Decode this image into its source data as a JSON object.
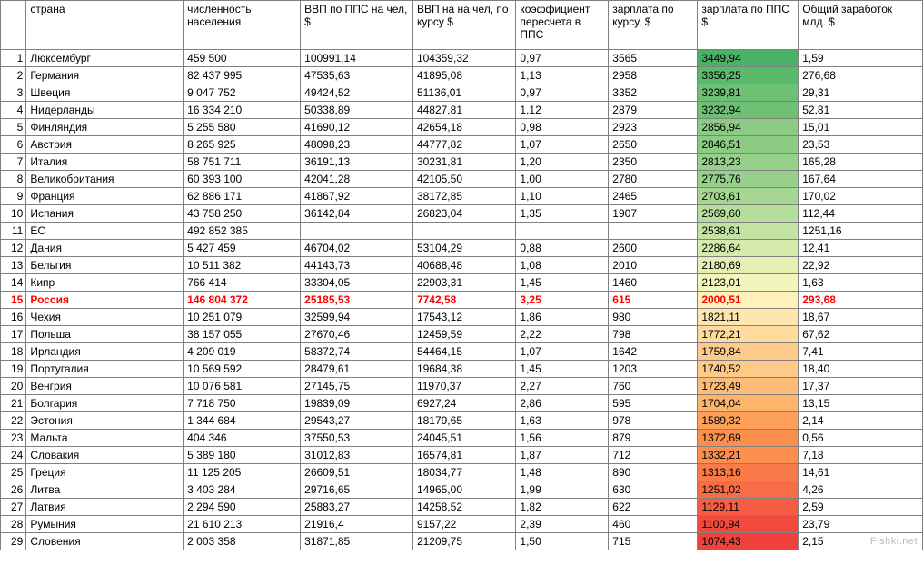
{
  "watermark": "Fishki.net",
  "headers": {
    "idx": "",
    "country": "страна",
    "population": "численность населения",
    "gdp_ppp": "ВВП по ППС  на чел, $",
    "gdp_rate": "ВВП на на чел, по курсу $",
    "coef": "коэффициент пересчета в ППС",
    "salary": "зарплата по курсу, $",
    "salary_ppp": "зарплата по ППС $",
    "total": "Общий заработок млд. $"
  },
  "highlight_row_idx": 15,
  "ppp_colors": [
    "#4bb168",
    "#5bb96c",
    "#6ec075",
    "#6ec075",
    "#8ccb84",
    "#8ccb84",
    "#97d08b",
    "#97d08b",
    "#a6d792",
    "#b6de9b",
    "#c4e3a3",
    "#d6eaac",
    "#e4f0b4",
    "#f2f5bd",
    "#fef1b9",
    "#fee6ae",
    "#fedb9e",
    "#feca89",
    "#feca89",
    "#fdbd79",
    "#fdb56e",
    "#fda05a",
    "#fc8e4e",
    "#fc8e4e",
    "#f97b49",
    "#f76d47",
    "#f55e44",
    "#f24a3f",
    "#f0413d"
  ],
  "rows": [
    {
      "idx": "1",
      "country": "Люксембург",
      "population": "459 500",
      "gdp_ppp": "100991,14",
      "gdp_rate": "104359,32",
      "coef": "0,97",
      "salary": "3565",
      "salary_ppp": "3449,94",
      "total": "1,59"
    },
    {
      "idx": "2",
      "country": "Германия",
      "population": "82 437 995",
      "gdp_ppp": "47535,63",
      "gdp_rate": "41895,08",
      "coef": "1,13",
      "salary": "2958",
      "salary_ppp": "3356,25",
      "total": "276,68"
    },
    {
      "idx": "3",
      "country": "Швеция",
      "population": "9 047 752",
      "gdp_ppp": "49424,52",
      "gdp_rate": "51136,01",
      "coef": "0,97",
      "salary": "3352",
      "salary_ppp": "3239,81",
      "total": "29,31"
    },
    {
      "idx": "4",
      "country": "Нидерланды",
      "population": "16 334 210",
      "gdp_ppp": "50338,89",
      "gdp_rate": "44827,81",
      "coef": "1,12",
      "salary": "2879",
      "salary_ppp": "3232,94",
      "total": "52,81"
    },
    {
      "idx": "5",
      "country": "Финляндия",
      "population": "5 255 580",
      "gdp_ppp": "41690,12",
      "gdp_rate": "42654,18",
      "coef": "0,98",
      "salary": "2923",
      "salary_ppp": "2856,94",
      "total": "15,01"
    },
    {
      "idx": "6",
      "country": "Австрия",
      "population": "8 265 925",
      "gdp_ppp": "48098,23",
      "gdp_rate": "44777,82",
      "coef": "1,07",
      "salary": "2650",
      "salary_ppp": "2846,51",
      "total": "23,53"
    },
    {
      "idx": "7",
      "country": "Италия",
      "population": "58 751 711",
      "gdp_ppp": "36191,13",
      "gdp_rate": "30231,81",
      "coef": "1,20",
      "salary": "2350",
      "salary_ppp": "2813,23",
      "total": "165,28"
    },
    {
      "idx": "8",
      "country": "Великобритания",
      "population": "60 393 100",
      "gdp_ppp": "42041,28",
      "gdp_rate": "42105,50",
      "coef": "1,00",
      "salary": "2780",
      "salary_ppp": "2775,76",
      "total": "167,64"
    },
    {
      "idx": "9",
      "country": "Франция",
      "population": "62 886 171",
      "gdp_ppp": "41867,92",
      "gdp_rate": "38172,85",
      "coef": "1,10",
      "salary": "2465",
      "salary_ppp": "2703,61",
      "total": "170,02"
    },
    {
      "idx": "10",
      "country": "Испания",
      "population": "43 758 250",
      "gdp_ppp": "36142,84",
      "gdp_rate": "26823,04",
      "coef": "1,35",
      "salary": "1907",
      "salary_ppp": "2569,60",
      "total": "112,44"
    },
    {
      "idx": "11",
      "country": " ЕС",
      "population": "492 852 385",
      "gdp_ppp": "",
      "gdp_rate": "",
      "coef": "",
      "salary": "",
      "salary_ppp": "2538,61",
      "total": "1251,16"
    },
    {
      "idx": "12",
      "country": "Дания",
      "population": "5 427 459",
      "gdp_ppp": "46704,02",
      "gdp_rate": "53104,29",
      "coef": "0,88",
      "salary": "2600",
      "salary_ppp": "2286,64",
      "total": "12,41"
    },
    {
      "idx": "13",
      "country": "Бельгия",
      "population": "10 511 382",
      "gdp_ppp": "44143,73",
      "gdp_rate": "40688,48",
      "coef": "1,08",
      "salary": "2010",
      "salary_ppp": "2180,69",
      "total": "22,92"
    },
    {
      "idx": "14",
      "country": "Кипр",
      "population": "766 414",
      "gdp_ppp": "33304,05",
      "gdp_rate": "22903,31",
      "coef": "1,45",
      "salary": "1460",
      "salary_ppp": "2123,01",
      "total": "1,63"
    },
    {
      "idx": "15",
      "country": "Россия",
      "population": "146 804 372",
      "gdp_ppp": "25185,53",
      "gdp_rate": "7742,58",
      "coef": "3,25",
      "salary": "615",
      "salary_ppp": "2000,51",
      "total": "293,68"
    },
    {
      "idx": "16",
      "country": "Чехия",
      "population": "10 251 079",
      "gdp_ppp": "32599,94",
      "gdp_rate": "17543,12",
      "coef": "1,86",
      "salary": "980",
      "salary_ppp": "1821,11",
      "total": "18,67"
    },
    {
      "idx": "17",
      "country": "Польша",
      "population": "38 157 055",
      "gdp_ppp": "27670,46",
      "gdp_rate": "12459,59",
      "coef": "2,22",
      "salary": "798",
      "salary_ppp": "1772,21",
      "total": "67,62"
    },
    {
      "idx": "18",
      "country": "Ирландия",
      "population": "4 209 019",
      "gdp_ppp": "58372,74",
      "gdp_rate": "54464,15",
      "coef": "1,07",
      "salary": "1642",
      "salary_ppp": "1759,84",
      "total": "7,41"
    },
    {
      "idx": "19",
      "country": "Португалия",
      "population": "10 569 592",
      "gdp_ppp": "28479,61",
      "gdp_rate": "19684,38",
      "coef": "1,45",
      "salary": "1203",
      "salary_ppp": "1740,52",
      "total": "18,40"
    },
    {
      "idx": "20",
      "country": "Венгрия",
      "population": "10 076 581",
      "gdp_ppp": "27145,75",
      "gdp_rate": "11970,37",
      "coef": "2,27",
      "salary": "760",
      "salary_ppp": "1723,49",
      "total": "17,37"
    },
    {
      "idx": "21",
      "country": "Болгария",
      "population": "7 718 750",
      "gdp_ppp": "19839,09",
      "gdp_rate": "6927,24",
      "coef": "2,86",
      "salary": "595",
      "salary_ppp": "1704,04",
      "total": "13,15"
    },
    {
      "idx": "22",
      "country": "Эстония",
      "population": "1 344 684",
      "gdp_ppp": "29543,27",
      "gdp_rate": "18179,65",
      "coef": "1,63",
      "salary": "978",
      "salary_ppp": "1589,32",
      "total": "2,14"
    },
    {
      "idx": "23",
      "country": "Мальта",
      "population": "404 346",
      "gdp_ppp": "37550,53",
      "gdp_rate": "24045,51",
      "coef": "1,56",
      "salary": "879",
      "salary_ppp": "1372,69",
      "total": "0,56"
    },
    {
      "idx": "24",
      "country": "Словакия",
      "population": "5 389 180",
      "gdp_ppp": "31012,83",
      "gdp_rate": "16574,81",
      "coef": "1,87",
      "salary": "712",
      "salary_ppp": "1332,21",
      "total": "7,18"
    },
    {
      "idx": "25",
      "country": "Греция",
      "population": "11 125 205",
      "gdp_ppp": "26609,51",
      "gdp_rate": "18034,77",
      "coef": "1,48",
      "salary": "890",
      "salary_ppp": "1313,16",
      "total": "14,61"
    },
    {
      "idx": "26",
      "country": "Литва",
      "population": "3 403 284",
      "gdp_ppp": "29716,65",
      "gdp_rate": "14965,00",
      "coef": "1,99",
      "salary": "630",
      "salary_ppp": "1251,02",
      "total": "4,26"
    },
    {
      "idx": "27",
      "country": "Латвия",
      "population": "2 294 590",
      "gdp_ppp": "25883,27",
      "gdp_rate": "14258,52",
      "coef": "1,82",
      "salary": "622",
      "salary_ppp": "1129,11",
      "total": "2,59"
    },
    {
      "idx": "28",
      "country": "Румыния",
      "population": "21 610 213",
      "gdp_ppp": "21916,4",
      "gdp_rate": "9157,22",
      "coef": "2,39",
      "salary": "460",
      "salary_ppp": "1100,94",
      "total": "23,79"
    },
    {
      "idx": "29",
      "country": "Словения",
      "population": "2 003 358",
      "gdp_ppp": "31871,85",
      "gdp_rate": "21209,75",
      "coef": "1,50",
      "salary": "715",
      "salary_ppp": "1074,43",
      "total": "2,15"
    }
  ]
}
